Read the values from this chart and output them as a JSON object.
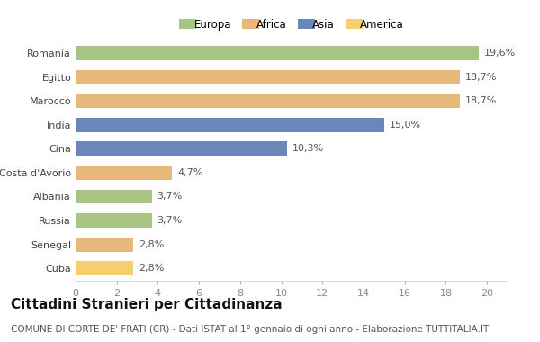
{
  "categories": [
    "Romania",
    "Egitto",
    "Marocco",
    "India",
    "Cina",
    "Costa d'Avorio",
    "Albania",
    "Russia",
    "Senegal",
    "Cuba"
  ],
  "values": [
    19.6,
    18.7,
    18.7,
    15.0,
    10.3,
    4.7,
    3.7,
    3.7,
    2.8,
    2.8
  ],
  "labels": [
    "19,6%",
    "18,7%",
    "18,7%",
    "15,0%",
    "10,3%",
    "4,7%",
    "3,7%",
    "3,7%",
    "2,8%",
    "2,8%"
  ],
  "colors": [
    "#a8c484",
    "#e8b87a",
    "#e8b87a",
    "#6b86b8",
    "#6b86b8",
    "#e8b87a",
    "#a8c484",
    "#a8c484",
    "#e8b87a",
    "#f5d06a"
  ],
  "legend_labels": [
    "Europa",
    "Africa",
    "Asia",
    "America"
  ],
  "legend_colors": [
    "#a8c484",
    "#e8b87a",
    "#6b86b8",
    "#f5d06a"
  ],
  "xlim": [
    0,
    21
  ],
  "xticks": [
    0,
    2,
    4,
    6,
    8,
    10,
    12,
    14,
    16,
    18,
    20
  ],
  "title": "Cittadini Stranieri per Cittadinanza",
  "subtitle": "COMUNE DI CORTE DE' FRATI (CR) - Dati ISTAT al 1° gennaio di ogni anno - Elaborazione TUTTITALIA.IT",
  "bg_color": "#ffffff",
  "bar_height": 0.6,
  "title_fontsize": 11,
  "subtitle_fontsize": 7.5,
  "label_fontsize": 8,
  "tick_fontsize": 8,
  "legend_fontsize": 8.5
}
